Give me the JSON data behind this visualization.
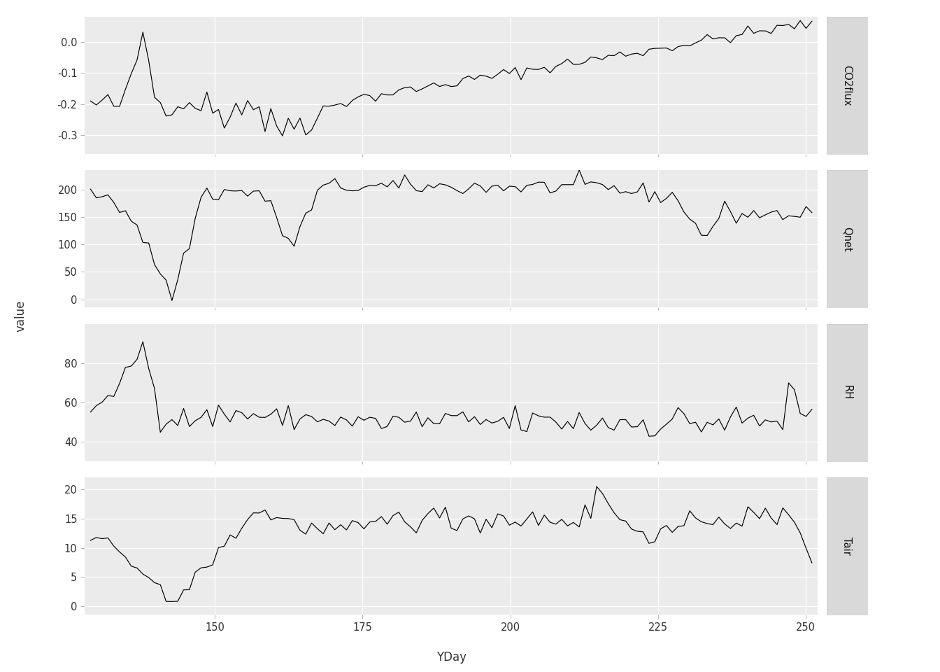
{
  "panels": [
    "CO2flux",
    "Qnet",
    "RH",
    "Tair"
  ],
  "xmin": 128,
  "xmax": 252,
  "xticks": [
    150,
    175,
    200,
    225,
    250
  ],
  "xlabel": "YDay",
  "ylabel": "value",
  "figure_bg": "#FFFFFF",
  "panel_bg": "#EBEBEB",
  "strip_bg": "#D9D9D9",
  "grid_color": "#FFFFFF",
  "line_color": "#000000",
  "tick_color": "#333333",
  "panel_ylims": {
    "CO2flux": [
      -0.36,
      0.08
    ],
    "Qnet": [
      -15,
      235
    ],
    "RH": [
      30,
      100
    ],
    "Tair": [
      -1.5,
      22
    ]
  },
  "panel_yticks": {
    "CO2flux": [
      0.0,
      -0.1,
      -0.2,
      -0.3
    ],
    "Qnet": [
      0,
      50,
      100,
      150,
      200
    ],
    "RH": [
      40,
      60,
      80
    ],
    "Tair": [
      0,
      5,
      10,
      15,
      20
    ]
  },
  "panel_yticklabels": {
    "CO2flux": [
      "0.0",
      "-0.1",
      "-0.2",
      "-0.3"
    ],
    "Qnet": [
      "0",
      "50",
      "100",
      "150",
      "200"
    ],
    "RH": [
      "40",
      "60",
      "80"
    ],
    "Tair": [
      "0",
      "5",
      "10",
      "15",
      "20"
    ]
  }
}
